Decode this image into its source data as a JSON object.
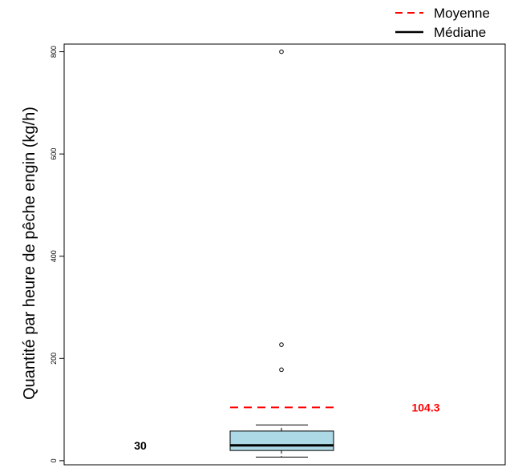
{
  "chart_data": {
    "type": "box",
    "ylabel": "Quantité par heure de pêche engin (kg/h)",
    "ylim": [
      -8,
      815
    ],
    "yticks": [
      0,
      200,
      400,
      600,
      800
    ],
    "ytick_labels": [
      "0",
      "200",
      "400",
      "600",
      "800"
    ],
    "box": {
      "whisker_low": 7,
      "q1": 20,
      "median": 30,
      "q3": 58,
      "whisker_high": 70,
      "outliers": [
        178,
        227,
        800
      ],
      "mean": 104.3
    },
    "annotations": {
      "median_text": "30",
      "mean_text": "104.3"
    },
    "legend": {
      "position": "top-right",
      "items": [
        {
          "label": "Moyenne",
          "style": "dashed",
          "color": "#ff0000"
        },
        {
          "label": "Médiane",
          "style": "solid",
          "color": "#000000"
        }
      ]
    },
    "colors": {
      "box_fill": "#add8e6",
      "mean_line": "#ff0000",
      "median_line": "#000000"
    }
  }
}
